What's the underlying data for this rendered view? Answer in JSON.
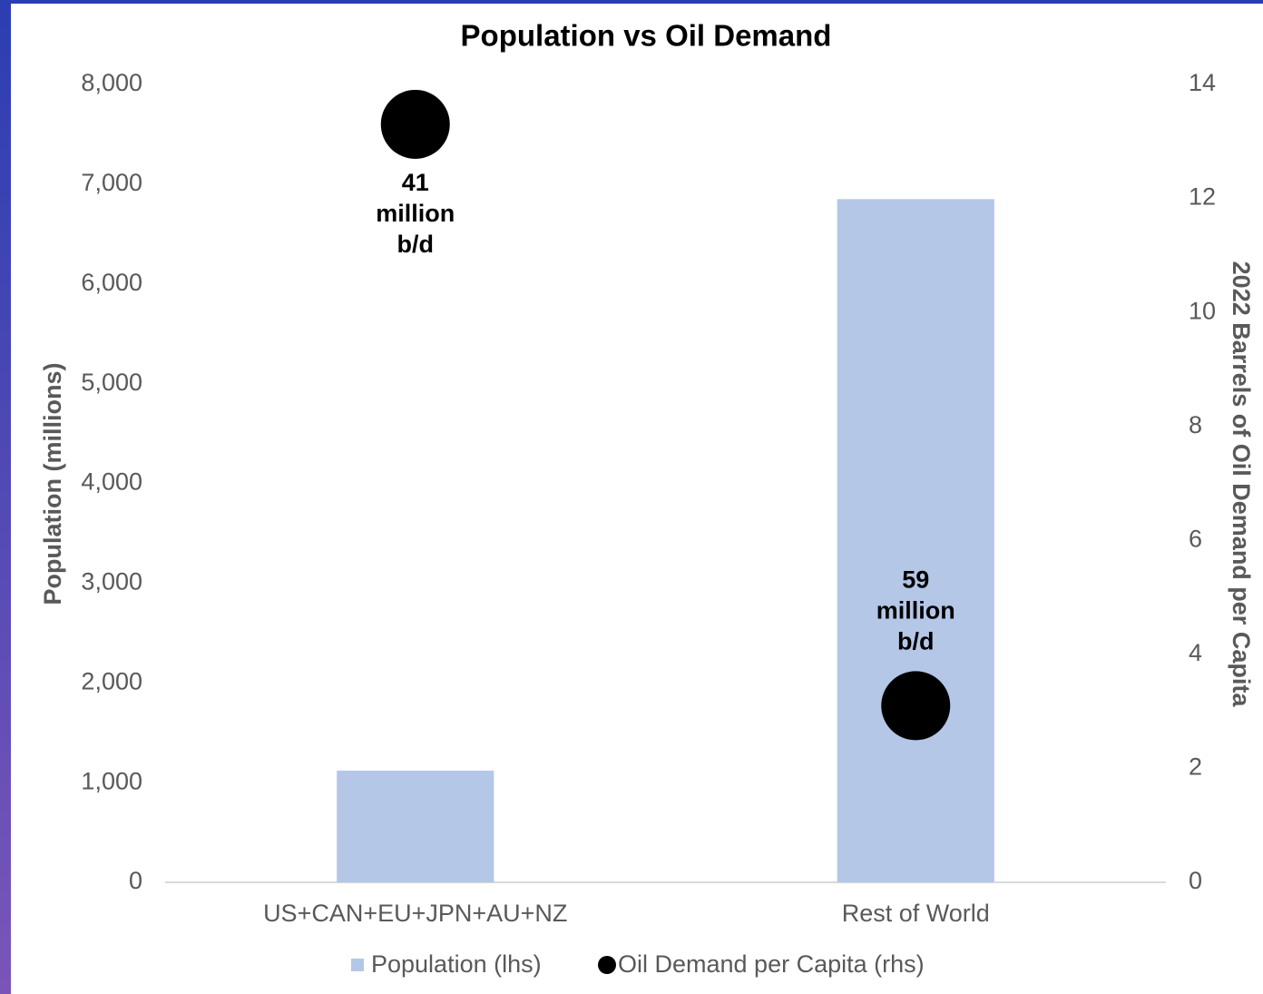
{
  "chart_data": {
    "type": "bar",
    "title": "Population vs Oil Demand",
    "y_label": "Population (millions)",
    "y2_label": "2022 Barrels of Oil Demand per Capita",
    "categories": [
      "US+CAN+EU+JPN+AU+NZ",
      "Rest of World"
    ],
    "series": [
      {
        "name": "Population (lhs)",
        "type": "bar",
        "color": "#b4c7e7",
        "values": [
          1120,
          6850
        ]
      },
      {
        "name": "Oil Demand per Capita (rhs)",
        "type": "scatter",
        "color": "#000000",
        "axis": "y2",
        "values": [
          13.3,
          3.1
        ]
      }
    ],
    "annotations": [
      [
        "41",
        "million",
        "b/d"
      ],
      [
        "59",
        "million",
        "b/d"
      ]
    ],
    "ylim": [
      0,
      8000
    ],
    "yticks": [
      0,
      {
        "value": 1000,
        "label": "1,000"
      },
      {
        "value": 2000,
        "label": "2,000"
      },
      {
        "value": 3000,
        "label": "3,000"
      },
      {
        "value": 4000,
        "label": "4,000"
      },
      {
        "value": 5000,
        "label": "5,000"
      },
      {
        "value": 6000,
        "label": "6,000"
      },
      {
        "value": 7000,
        "label": "7,000"
      },
      {
        "value": 8000,
        "label": "8,000"
      }
    ],
    "y2lim": [
      0,
      14
    ],
    "y2ticks": [
      0,
      2,
      4,
      6,
      8,
      10,
      12,
      14
    ],
    "legend": "bottom",
    "grid": false
  }
}
